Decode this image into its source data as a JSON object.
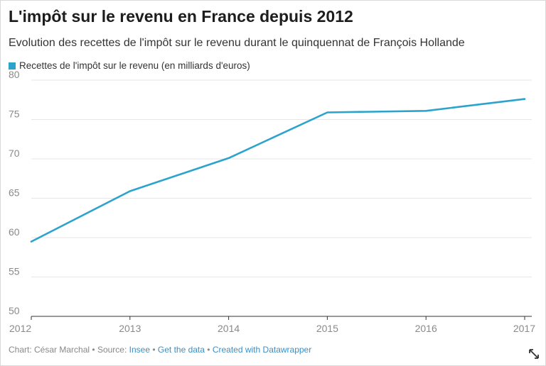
{
  "title": "L'impôt sur le revenu en France depuis 2012",
  "subtitle": "Evolution des recettes de l'impôt sur le revenu durant le quinquennat de François Hollande",
  "footer": {
    "chart_label": "Chart: César Marchal",
    "source_prefix": "Source:",
    "source_link": "Insee",
    "get_data": "Get the data",
    "created_with": "Created with Datawrapper",
    "separator": "•"
  },
  "colors": {
    "series": "#2ba3cd",
    "grid": "#e6e6e6",
    "axis": "#333333",
    "tick_text": "#8a8a8a"
  },
  "chart_data": {
    "type": "line",
    "title": "L'impôt sur le revenu en France depuis 2012",
    "subtitle": "Evolution des recettes de l'impôt sur le revenu durant le quinquennat de François Hollande",
    "xlabel": "",
    "ylabel": "",
    "x": [
      "2012",
      "2013",
      "2014",
      "2015",
      "2016",
      "2017"
    ],
    "series": [
      {
        "name": "Recettes de l'impôt sur le revenu (en milliards d'euros)",
        "values": [
          59.5,
          65.9,
          70.1,
          75.9,
          76.1,
          77.6
        ]
      }
    ],
    "ylim": [
      50,
      80
    ],
    "yticks": [
      50,
      55,
      60,
      65,
      70,
      75,
      80
    ],
    "grid": true,
    "legend": "top-left"
  }
}
